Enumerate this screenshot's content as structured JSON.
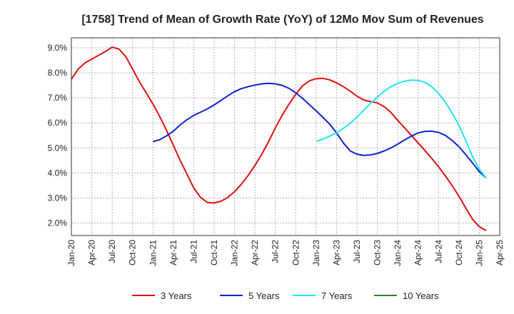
{
  "chart_data": {
    "type": "line",
    "title": "[1758]  Trend of Mean of Growth Rate (YoY) of 12Mo Mov Sum of Revenues",
    "xlabel": "",
    "ylabel": "",
    "ylim": [
      1.5,
      9.4
    ],
    "y_ticks": [
      2.0,
      3.0,
      4.0,
      5.0,
      6.0,
      7.0,
      8.0,
      9.0
    ],
    "y_tick_labels": [
      "2.0%",
      "3.0%",
      "4.0%",
      "5.0%",
      "6.0%",
      "7.0%",
      "8.0%",
      "9.0%"
    ],
    "x_tick_labels": [
      "Jan-20",
      "Apr-20",
      "Jul-20",
      "Oct-20",
      "Jan-21",
      "Apr-21",
      "Jul-21",
      "Oct-21",
      "Jan-22",
      "Apr-22",
      "Jul-22",
      "Oct-22",
      "Jan-23",
      "Apr-23",
      "Jul-23",
      "Oct-23",
      "Jan-24",
      "Apr-24",
      "Jul-24",
      "Oct-24",
      "Jan-25",
      "Apr-25"
    ],
    "grid": true,
    "legend_position": "bottom",
    "series": [
      {
        "name": "3 Years",
        "color": "#dd1111",
        "start_month_index": 0,
        "values": [
          7.75,
          8.15,
          8.4,
          8.55,
          8.7,
          8.85,
          9.03,
          8.95,
          8.65,
          8.15,
          7.65,
          7.2,
          6.75,
          6.25,
          5.7,
          5.1,
          4.5,
          3.95,
          3.4,
          3.02,
          2.82,
          2.8,
          2.87,
          3.02,
          3.25,
          3.55,
          3.9,
          4.3,
          4.75,
          5.25,
          5.8,
          6.3,
          6.75,
          7.15,
          7.48,
          7.68,
          7.77,
          7.78,
          7.72,
          7.6,
          7.45,
          7.27,
          7.07,
          6.92,
          6.85,
          6.8,
          6.65,
          6.42,
          6.1,
          5.8,
          5.5,
          5.2,
          4.9,
          4.58,
          4.25,
          3.88,
          3.5,
          3.07,
          2.6,
          2.15,
          1.85,
          1.7
        ]
      },
      {
        "name": "5 Years",
        "color": "#1122cc",
        "start_month_index": 12,
        "values": [
          5.25,
          5.33,
          5.48,
          5.67,
          5.92,
          6.13,
          6.3,
          6.43,
          6.56,
          6.72,
          6.9,
          7.08,
          7.25,
          7.37,
          7.45,
          7.51,
          7.56,
          7.58,
          7.56,
          7.5,
          7.38,
          7.2,
          6.98,
          6.73,
          6.48,
          6.22,
          5.95,
          5.6,
          5.2,
          4.88,
          4.75,
          4.7,
          4.72,
          4.78,
          4.88,
          5.0,
          5.15,
          5.32,
          5.47,
          5.6,
          5.66,
          5.67,
          5.62,
          5.5,
          5.3,
          5.05,
          4.73,
          4.4,
          4.05,
          3.8
        ]
      },
      {
        "name": "7 Years",
        "color": "#22e5ee",
        "start_month_index": 36,
        "values": [
          5.27,
          5.35,
          5.47,
          5.6,
          5.78,
          5.98,
          6.23,
          6.5,
          6.78,
          7.03,
          7.27,
          7.45,
          7.58,
          7.67,
          7.71,
          7.7,
          7.62,
          7.45,
          7.18,
          6.83,
          6.4,
          5.9,
          5.3,
          4.65,
          4.15,
          3.8
        ]
      },
      {
        "name": "10 Years",
        "color": "#228822",
        "start_month_index": 0,
        "values": []
      }
    ]
  }
}
